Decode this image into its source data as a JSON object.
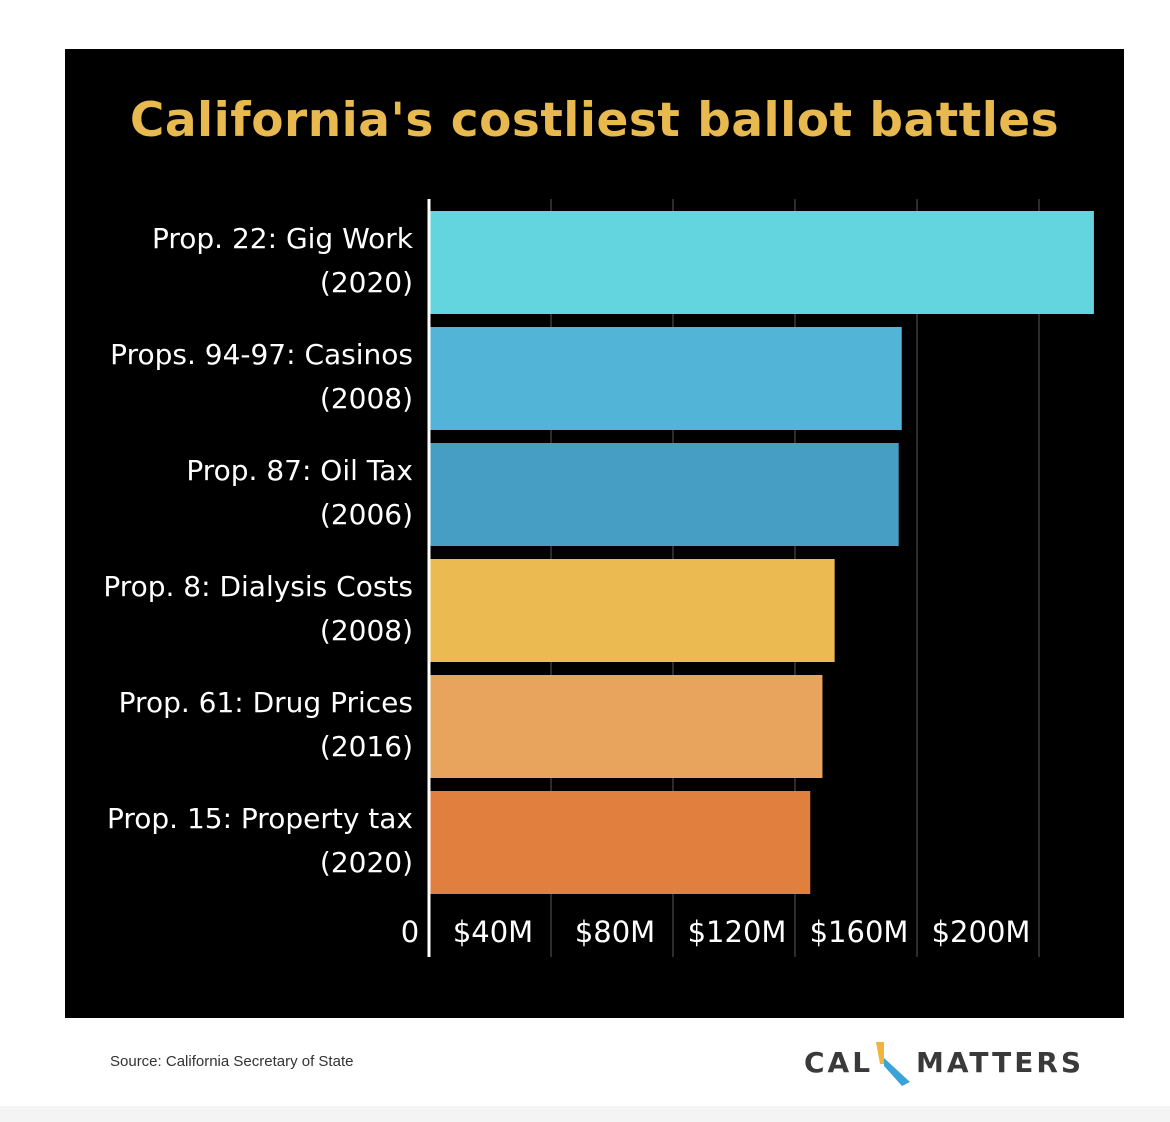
{
  "colors": {
    "background": "#000000",
    "title": "#e8b94f",
    "text": "#ffffff",
    "gridline": "#3a3a3a",
    "axis": "#ffffff"
  },
  "chart_data": {
    "type": "bar",
    "orientation": "horizontal",
    "title": "California's costliest ballot battles",
    "xlabel": "",
    "ylabel": "",
    "categories": [
      {
        "name": "Prop. 22: Gig Work",
        "year": "(2020)"
      },
      {
        "name": "Props. 94-97: Casinos",
        "year": "(2008)"
      },
      {
        "name": "Prop. 87: Oil Tax",
        "year": "(2006)"
      },
      {
        "name": "Prop. 8: Dialysis Costs",
        "year": "(2008)"
      },
      {
        "name": "Prop. 61: Drug Prices",
        "year": "(2016)"
      },
      {
        "name": "Prop. 15: Property tax",
        "year": "(2020)"
      }
    ],
    "values": [
      218,
      155,
      154,
      133,
      129,
      125
    ],
    "value_unit": "million USD",
    "bar_colors": [
      "#63d5df",
      "#52b4d6",
      "#469ec4",
      "#ebbb52",
      "#e8a45c",
      "#e07f3e"
    ],
    "xlim": [
      0,
      220
    ],
    "x_ticks": [
      {
        "value": 0,
        "label": "0"
      },
      {
        "value": 40,
        "label": "$40M"
      },
      {
        "value": 80,
        "label": "$80M"
      },
      {
        "value": 120,
        "label": "$120M"
      },
      {
        "value": 160,
        "label": "$160M"
      },
      {
        "value": 200,
        "label": "$200M"
      }
    ],
    "grid": true,
    "legend": "none"
  },
  "footer": {
    "source": "Source: California Secretary of State",
    "logo_left": "CAL",
    "logo_right": "MATTERS",
    "logo_colors": [
      "#f0b43a",
      "#3aa3d8"
    ]
  }
}
